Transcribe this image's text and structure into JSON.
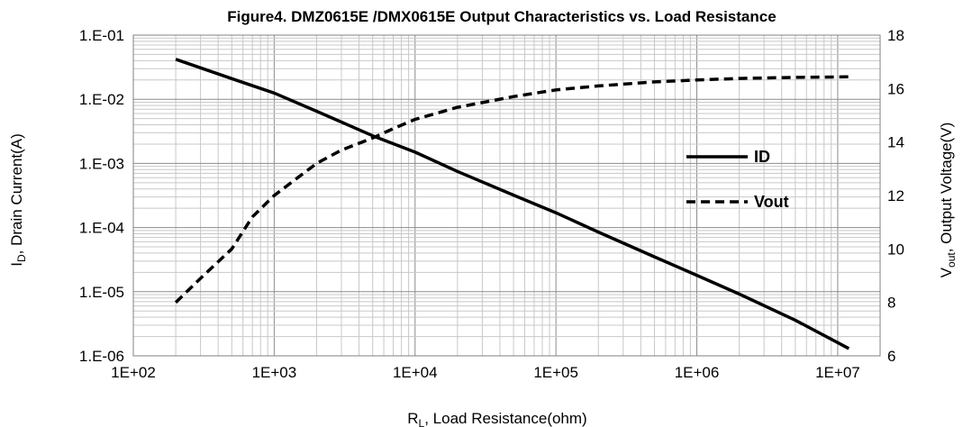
{
  "chart_data": {
    "type": "line",
    "title": "Figure4.  DMZ0615E /DMX0615E Output Characteristics vs. Load Resistance",
    "xlabel": {
      "main": "R",
      "sub": "L",
      "rest": ", Load Resistance(ohm)"
    },
    "ylabel_left": {
      "main": "I",
      "sub": "D",
      "rest": ", Drain Current(A)"
    },
    "ylabel_right": {
      "main": "V",
      "sub": "out",
      "rest": ", Output Voltage(V)"
    },
    "x_scale": "log",
    "xlim": [
      100,
      20000000
    ],
    "x_ticks": [
      100,
      1000,
      10000,
      100000,
      1000000,
      10000000
    ],
    "x_tick_labels": [
      "1E+02",
      "1E+03",
      "1E+04",
      "1E+05",
      "1E+06",
      "1E+07"
    ],
    "y_left_scale": "log",
    "y_left_lim": [
      1e-06,
      0.1
    ],
    "y_left_ticks": [
      0.1,
      0.01,
      0.001,
      0.0001,
      1e-05,
      1e-06
    ],
    "y_left_tick_labels": [
      "1.E-01",
      "1.E-02",
      "1.E-03",
      "1.E-04",
      "1.E-05",
      "1.E-06"
    ],
    "y_right_scale": "linear",
    "y_right_lim": [
      6,
      18
    ],
    "y_right_ticks": [
      6,
      8,
      10,
      12,
      14,
      16,
      18
    ],
    "y_right_tick_labels": [
      "6",
      "8",
      "10",
      "12",
      "14",
      "16",
      "18"
    ],
    "grid": true,
    "legend_position": "right",
    "series": [
      {
        "name": "ID",
        "axis": "left",
        "style": "solid",
        "color": "#000000",
        "x": [
          200,
          500,
          1000,
          2000,
          5000,
          10000,
          20000,
          50000,
          100000,
          200000,
          500000,
          1000000,
          2000000,
          5000000,
          12000000
        ],
        "y": [
          0.042,
          0.021,
          0.0125,
          0.0065,
          0.0027,
          0.0015,
          0.00075,
          0.00032,
          0.00017,
          8.5e-05,
          3.5e-05,
          1.8e-05,
          9.2e-06,
          3.6e-06,
          1.3e-06
        ]
      },
      {
        "name": "Vout",
        "axis": "right",
        "style": "dashed",
        "color": "#000000",
        "x": [
          200,
          300,
          500,
          700,
          1000,
          1500,
          2000,
          3000,
          5000,
          7000,
          10000,
          20000,
          50000,
          100000,
          200000,
          500000,
          1000000,
          2000000,
          5000000,
          12000000
        ],
        "y": [
          8.0,
          8.9,
          10.0,
          11.2,
          12.0,
          12.7,
          13.2,
          13.7,
          14.15,
          14.5,
          14.85,
          15.3,
          15.7,
          15.95,
          16.1,
          16.25,
          16.32,
          16.38,
          16.42,
          16.44
        ]
      }
    ]
  }
}
